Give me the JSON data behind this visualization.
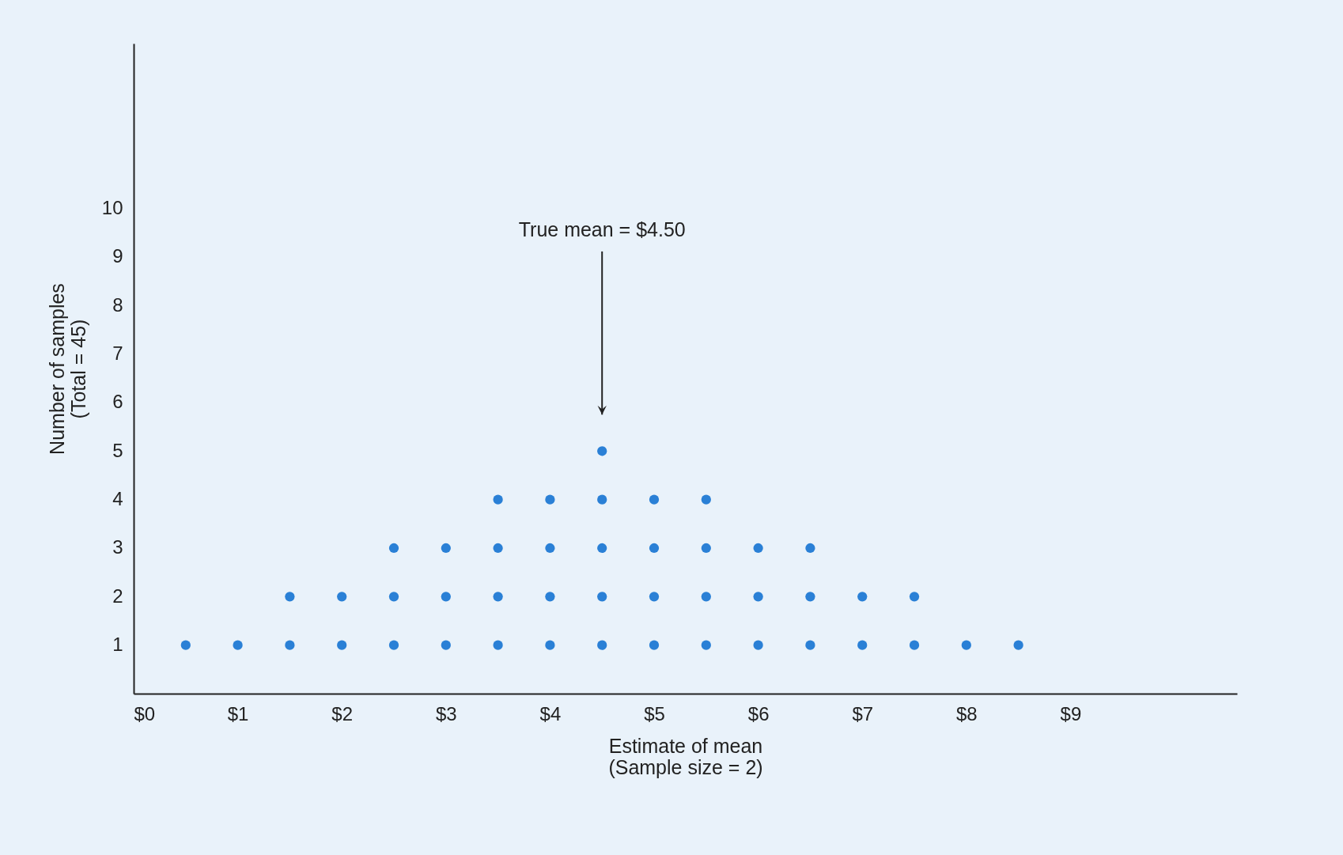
{
  "chart_data": {
    "type": "scatter",
    "xlabel": "Estimate of mean\n(Sample size = 2)",
    "ylabel": "Number of samples\n(Total = 45)",
    "x": [
      0.5,
      1,
      1.5,
      1.5,
      2,
      2,
      2.5,
      2.5,
      2.5,
      3,
      3,
      3,
      3.5,
      3.5,
      3.5,
      3.5,
      4,
      4,
      4,
      4,
      4.5,
      4.5,
      4.5,
      4.5,
      4.5,
      5,
      5,
      5,
      5,
      5.5,
      5.5,
      5.5,
      5.5,
      6,
      6,
      6,
      6.5,
      6.5,
      6.5,
      7,
      7,
      7.5,
      7.5,
      8,
      8.5
    ],
    "values": [
      1,
      1,
      1,
      2,
      1,
      2,
      1,
      2,
      3,
      1,
      2,
      3,
      1,
      2,
      3,
      4,
      1,
      2,
      3,
      4,
      1,
      2,
      3,
      4,
      5,
      1,
      2,
      3,
      4,
      1,
      2,
      3,
      4,
      1,
      2,
      3,
      1,
      2,
      3,
      1,
      2,
      1,
      2,
      1,
      1
    ],
    "color": "#2a80d6",
    "marker": "circle",
    "grid": false,
    "xlim": [
      0,
      10.6
    ],
    "ylim": [
      0,
      13.4
    ],
    "xticks": [
      {
        "value": 0,
        "label": "$0"
      },
      {
        "value": 1,
        "label": "$1"
      },
      {
        "value": 2,
        "label": "$2"
      },
      {
        "value": 3,
        "label": "$3"
      },
      {
        "value": 4,
        "label": "$4"
      },
      {
        "value": 5,
        "label": "$5"
      },
      {
        "value": 6,
        "label": "$6"
      },
      {
        "value": 7,
        "label": "$7"
      },
      {
        "value": 8,
        "label": "$8"
      },
      {
        "value": 9,
        "label": "$9"
      }
    ],
    "yticks": [
      1,
      2,
      3,
      4,
      5,
      6,
      7,
      8,
      9,
      10
    ],
    "ref_lines": [
      {
        "axis": "x",
        "value": 4.5,
        "label": "True mean = $4.50"
      }
    ]
  }
}
